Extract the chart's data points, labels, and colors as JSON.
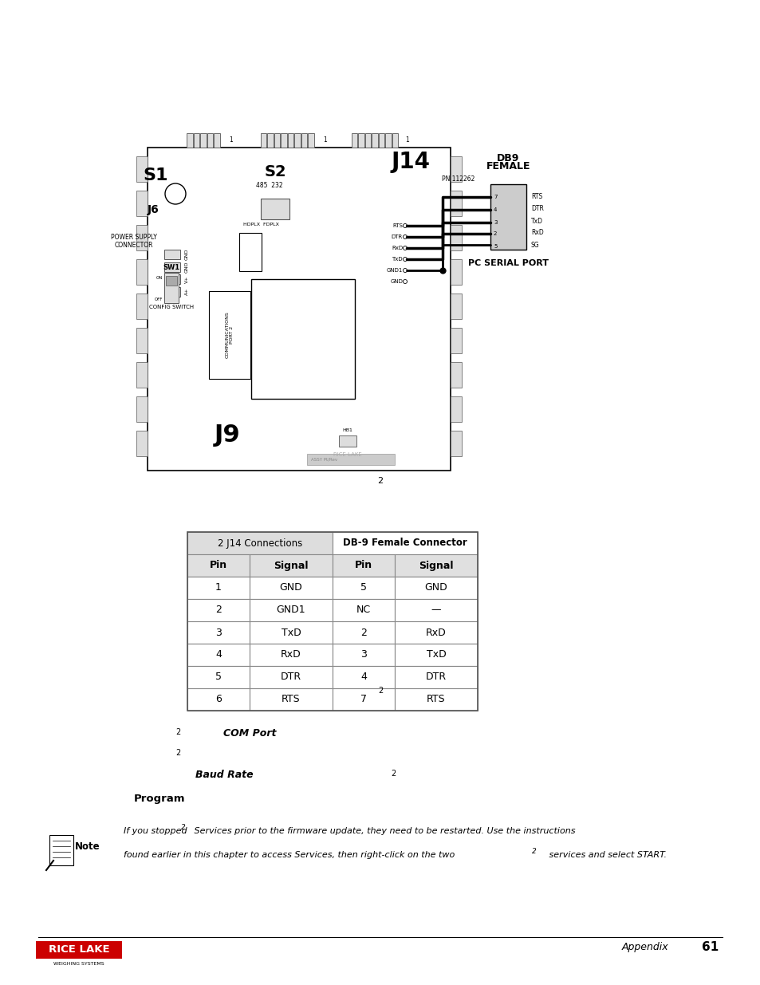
{
  "bg_color": "#ffffff",
  "page_width": 9.54,
  "page_height": 12.35,
  "table_header1": "2 J14 Connections",
  "table_header2": "DB-9 Female Connector",
  "table_col_headers": [
    "Pin",
    "Signal",
    "Pin",
    "Signal"
  ],
  "table_rows": [
    [
      "1",
      "GND",
      "5",
      "GND"
    ],
    [
      "2",
      "GND1",
      "NC",
      "—"
    ],
    [
      "3",
      "TxD",
      "2",
      "RxD"
    ],
    [
      "4",
      "RxD",
      "3",
      "TxD"
    ],
    [
      "5",
      "DTR",
      "4",
      "DTR"
    ],
    [
      "6",
      "RTS",
      "7",
      "RTS"
    ]
  ],
  "footnote_num": "2",
  "text_line1": "2",
  "text_com_port": "COM Port",
  "text_line3": "2",
  "text_baud": "Baud Rate",
  "text_line5": "2",
  "text_program": "Program",
  "note_text1": "If you stopped",
  "note_superscript1": "2",
  "note_text2": " Services prior to the firmware update, they need to be restarted. Use the instructions",
  "note_text3": "found earlier in this chapter to access Services, then right-click on the two",
  "note_superscript2": "2",
  "note_text4": " services and select START.",
  "footer_text": "Appendix",
  "footer_page": "61",
  "label_color": "#000000",
  "gray_color": "#cccccc",
  "red_color": "#cc0000",
  "light_gray": "#e8e8e8",
  "mid_gray": "#b0b0b0"
}
